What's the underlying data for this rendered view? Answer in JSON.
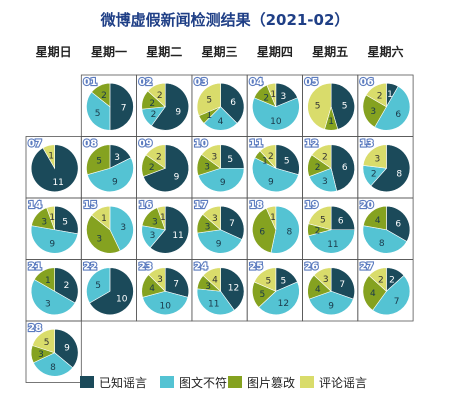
{
  "chart_data": {
    "type": "pie",
    "title": "微博虚假新闻检测结果（2021-02）",
    "weekdays": [
      "星期日",
      "星期一",
      "星期二",
      "星期三",
      "星期四",
      "星期五",
      "星期六"
    ],
    "legend": [
      {
        "name": "已知谣言",
        "color": "#1b4a5a"
      },
      {
        "name": "图文不符",
        "color": "#54c3d3"
      },
      {
        "name": "图片篡改",
        "color": "#85a220"
      },
      {
        "name": "评论谣言",
        "color": "#d9dc6b"
      }
    ],
    "days": [
      {
        "day": "01",
        "values": [
          7,
          5,
          2,
          0
        ]
      },
      {
        "day": "02",
        "values": [
          9,
          2,
          2,
          2
        ]
      },
      {
        "day": "03",
        "values": [
          6,
          4,
          1,
          5
        ]
      },
      {
        "day": "04",
        "values": [
          3,
          10,
          2,
          1
        ]
      },
      {
        "day": "05",
        "values": [
          5,
          0,
          1,
          5
        ]
      },
      {
        "day": "06",
        "values": [
          1,
          6,
          3,
          2
        ]
      },
      {
        "day": "07",
        "values": [
          11,
          0,
          0,
          1
        ]
      },
      {
        "day": "08",
        "values": [
          3,
          9,
          5,
          0
        ]
      },
      {
        "day": "09",
        "values": [
          9,
          0,
          2,
          2
        ]
      },
      {
        "day": "10",
        "values": [
          5,
          9,
          3,
          3
        ]
      },
      {
        "day": "11",
        "values": [
          5,
          9,
          1,
          2
        ]
      },
      {
        "day": "12",
        "values": [
          6,
          3,
          2,
          2
        ]
      },
      {
        "day": "13",
        "values": [
          8,
          2,
          0,
          3
        ]
      },
      {
        "day": "14",
        "values": [
          5,
          9,
          3,
          1
        ]
      },
      {
        "day": "15",
        "values": [
          0,
          3,
          3,
          1
        ]
      },
      {
        "day": "16",
        "values": [
          11,
          3,
          3,
          1
        ]
      },
      {
        "day": "17",
        "values": [
          7,
          9,
          3,
          3
        ]
      },
      {
        "day": "18",
        "values": [
          0,
          8,
          6,
          1
        ]
      },
      {
        "day": "19",
        "values": [
          6,
          11,
          2,
          5
        ]
      },
      {
        "day": "20",
        "values": [
          6,
          8,
          4,
          0
        ]
      },
      {
        "day": "21",
        "values": [
          2,
          3,
          1,
          0
        ]
      },
      {
        "day": "22",
        "values": [
          10,
          5,
          0,
          0
        ]
      },
      {
        "day": "23",
        "values": [
          7,
          10,
          4,
          3
        ]
      },
      {
        "day": "24",
        "values": [
          12,
          11,
          3,
          4
        ]
      },
      {
        "day": "25",
        "values": [
          5,
          12,
          5,
          5
        ]
      },
      {
        "day": "26",
        "values": [
          7,
          9,
          4,
          3
        ]
      },
      {
        "day": "27",
        "values": [
          2,
          7,
          4,
          2
        ]
      },
      {
        "day": "28",
        "values": [
          9,
          8,
          3,
          5
        ]
      }
    ]
  }
}
